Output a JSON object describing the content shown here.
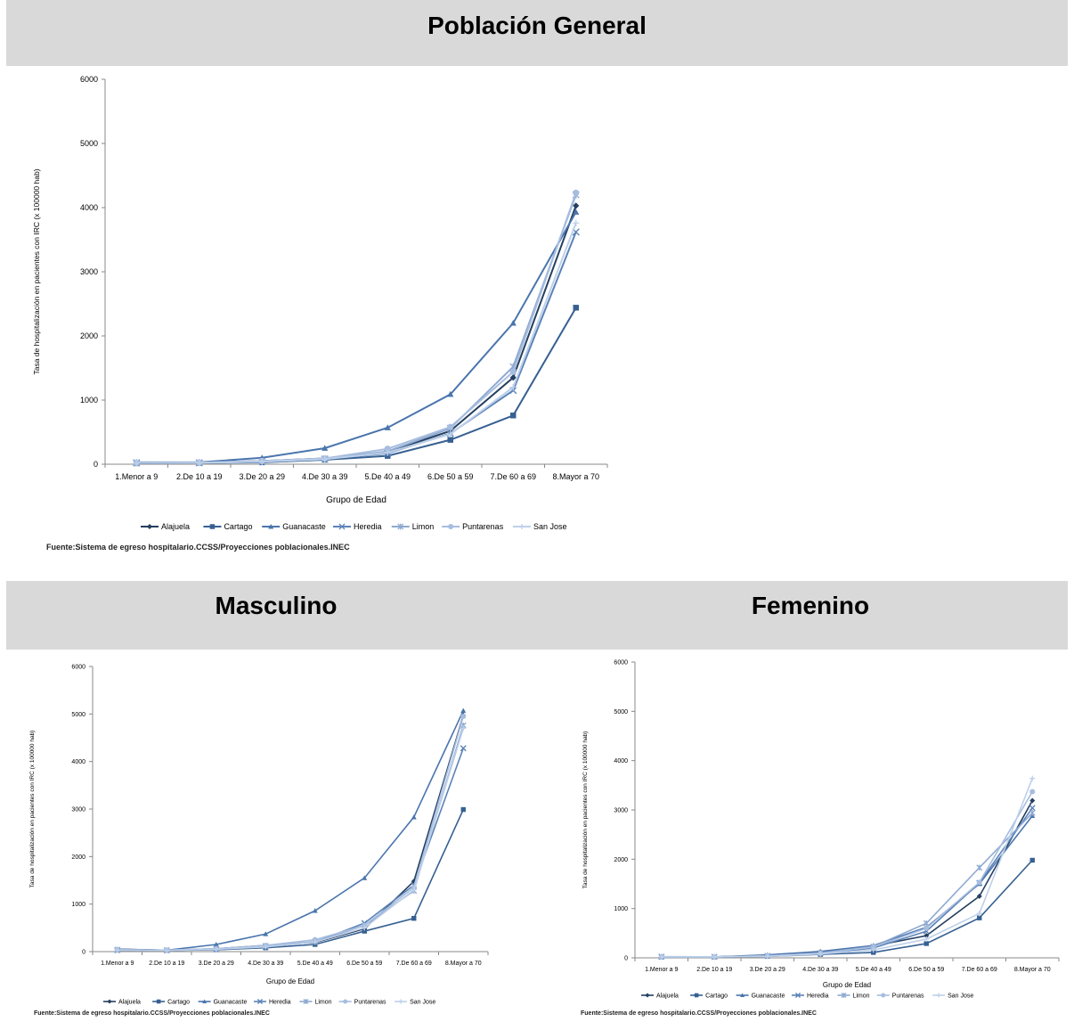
{
  "sections": {
    "general_title": "Población General",
    "masculino_title": "Masculino",
    "femenino_title": "Femenino"
  },
  "source_text": "Fuente:Sistema de egreso hospitalario.CCSS/Proyecciones poblacionales.INEC",
  "colors": {
    "band": "#d9d9d9",
    "series": [
      "#243f60",
      "#376092",
      "#4a75ad",
      "#5b83b8",
      "#8ea9d1",
      "#a7bddf",
      "#bdd0ea"
    ]
  },
  "chart_data": [
    {
      "id": "general",
      "type": "line",
      "title": "Población General",
      "xlabel": "Grupo de Edad",
      "ylabel": "Tasa de hospitalización en pacientes con IRC (x 100000 hab)",
      "ylim": [
        0,
        6000
      ],
      "yticks": [
        0,
        1000,
        2000,
        3000,
        4000,
        5000,
        6000
      ],
      "categories": [
        "1.Menor a 9",
        "2.De 10 a 19",
        "3.De 20 a 29",
        "4.De 30 a 39",
        "5.De 40 a 49",
        "6.De 50 a 59",
        "7.De 60 a 69",
        "8.Mayor a 70"
      ],
      "legend": "bottom",
      "series": [
        {
          "name": "Alajuela",
          "values": [
            20,
            25,
            50,
            90,
            190,
            520,
            1350,
            4030
          ]
        },
        {
          "name": "Cartago",
          "values": [
            15,
            20,
            30,
            70,
            130,
            380,
            760,
            2440
          ]
        },
        {
          "name": "Guanacaste",
          "values": [
            30,
            30,
            100,
            250,
            570,
            1090,
            2200,
            3930
          ]
        },
        {
          "name": "Heredia",
          "values": [
            20,
            20,
            40,
            80,
            170,
            480,
            1150,
            3620
          ]
        },
        {
          "name": "Limon",
          "values": [
            25,
            25,
            40,
            80,
            200,
            560,
            1520,
            4200
          ]
        },
        {
          "name": "Puntarenas",
          "values": [
            20,
            25,
            50,
            90,
            240,
            580,
            1440,
            4230
          ]
        },
        {
          "name": "San Jose",
          "values": [
            20,
            20,
            40,
            80,
            180,
            470,
            1200,
            3760
          ]
        }
      ]
    },
    {
      "id": "masculino",
      "type": "line",
      "title": "Masculino",
      "xlabel": "Grupo de Edad",
      "ylabel": "Tasa de hospitalización en pacientes con IRC (x 100000 hab)",
      "ylim": [
        0,
        6000
      ],
      "yticks": [
        0,
        1000,
        2000,
        3000,
        4000,
        5000,
        6000
      ],
      "categories": [
        "1.Menor a 9",
        "2.De 10 a 19",
        "3.De 20 a 29",
        "4.De 30 a 39",
        "5.De 40 a 49",
        "6.De 50 a 59",
        "7.De 60 a 69",
        "8.Mayor a 70"
      ],
      "legend": "bottom",
      "series": [
        {
          "name": "Alajuela",
          "values": [
            50,
            30,
            60,
            130,
            190,
            480,
            1480,
            4970
          ]
        },
        {
          "name": "Cartago",
          "values": [
            30,
            25,
            40,
            80,
            150,
            430,
            700,
            2990
          ]
        },
        {
          "name": "Guanacaste",
          "values": [
            50,
            30,
            150,
            370,
            860,
            1550,
            2830,
            5070
          ]
        },
        {
          "name": "Heredia",
          "values": [
            30,
            25,
            50,
            100,
            200,
            600,
            1400,
            4280
          ]
        },
        {
          "name": "Limon",
          "values": [
            40,
            30,
            60,
            120,
            210,
            550,
            1280,
            4760
          ]
        },
        {
          "name": "Puntarenas",
          "values": [
            40,
            30,
            60,
            130,
            250,
            550,
            1350,
            4950
          ]
        },
        {
          "name": "San Jose",
          "values": [
            30,
            25,
            50,
            100,
            200,
            500,
            1300,
            4700
          ]
        }
      ]
    },
    {
      "id": "femenino",
      "type": "line",
      "title": "Femenino",
      "xlabel": "Grupo de Edad",
      "ylabel": "Tasa de hospitalización en pacientes con IRC (x 100000 hab)",
      "ylim": [
        0,
        6000
      ],
      "yticks": [
        0,
        1000,
        2000,
        3000,
        4000,
        5000,
        6000
      ],
      "categories": [
        "1.Menor a 9",
        "2.De 10 a 19",
        "3.De 20 a 29",
        "4.De 30 a 39",
        "5.De 40 a 49",
        "6.De 50 a 59",
        "7.De 60 a 69",
        "8.Mayor a 70"
      ],
      "legend": "bottom",
      "series": [
        {
          "name": "Alajuela",
          "values": [
            20,
            20,
            50,
            120,
            240,
            450,
            1250,
            3190
          ]
        },
        {
          "name": "Cartago",
          "values": [
            15,
            15,
            30,
            70,
            110,
            290,
            810,
            1980
          ]
        },
        {
          "name": "Guanacaste",
          "values": [
            20,
            20,
            60,
            130,
            250,
            620,
            1500,
            2880
          ]
        },
        {
          "name": "Heredia",
          "values": [
            20,
            20,
            40,
            90,
            200,
            540,
            1520,
            3040
          ]
        },
        {
          "name": "Limon",
          "values": [
            25,
            20,
            40,
            100,
            230,
            700,
            1830,
            2940
          ]
        },
        {
          "name": "Puntarenas",
          "values": [
            20,
            20,
            40,
            90,
            220,
            600,
            1530,
            3370
          ]
        },
        {
          "name": "San Jose",
          "values": [
            20,
            20,
            30,
            80,
            160,
            380,
            900,
            3640
          ]
        }
      ]
    }
  ]
}
